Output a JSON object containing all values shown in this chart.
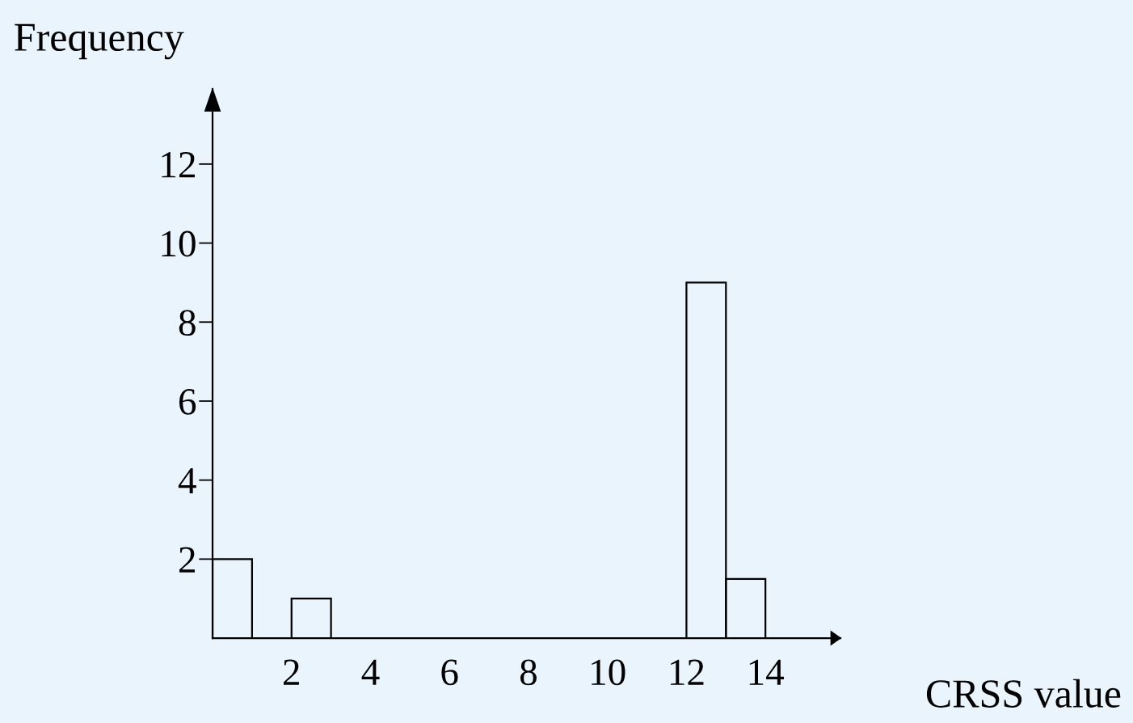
{
  "chart_data": {
    "type": "histogram",
    "xlabel": "CRSS value",
    "ylabel": "Frequency",
    "bins": [
      0,
      1,
      2,
      3,
      4,
      5,
      6,
      7,
      8,
      9,
      10,
      11,
      12,
      13,
      14
    ],
    "values": [
      2,
      0,
      1,
      0,
      0,
      0,
      0,
      0,
      0,
      0,
      0,
      0,
      9,
      1.5
    ],
    "color": "#000000",
    "xlim": [
      0,
      15.9
    ],
    "ylim": [
      0,
      13.9
    ],
    "xticks": [
      2,
      4,
      6,
      8,
      10,
      12,
      14
    ],
    "yticks": [
      2,
      4,
      6,
      8,
      10,
      12
    ],
    "grid": false
  }
}
